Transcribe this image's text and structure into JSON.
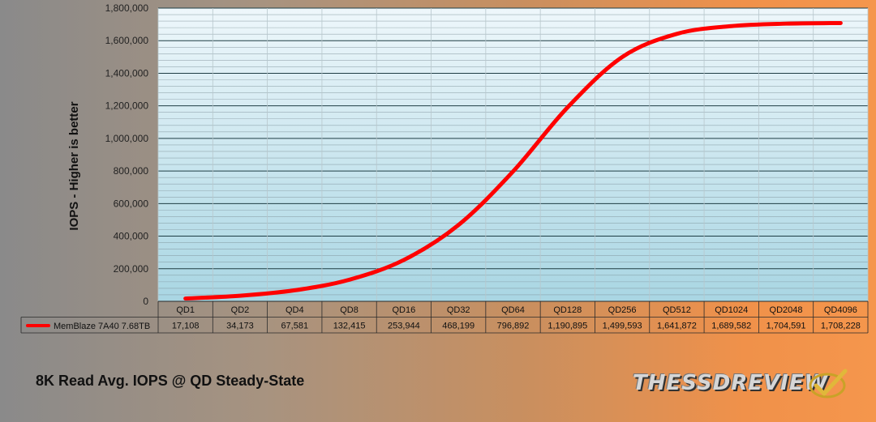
{
  "chart_data": {
    "type": "line",
    "title": "8K Read Avg. IOPS @ QD Steady-State",
    "ylabel": "IOPS - Higher is better",
    "xlabel": "",
    "ylim": [
      0,
      1800000
    ],
    "yticks": [
      0,
      200000,
      400000,
      600000,
      800000,
      1000000,
      1200000,
      1400000,
      1600000,
      1800000
    ],
    "ytick_labels": [
      "0",
      "200,000",
      "400,000",
      "600,000",
      "800,000",
      "1,000,000",
      "1,200,000",
      "1,400,000",
      "1,600,000",
      "1,800,000"
    ],
    "categories": [
      "QD1",
      "QD2",
      "QD4",
      "QD8",
      "QD16",
      "QD32",
      "QD64",
      "QD128",
      "QD256",
      "QD512",
      "QD1024",
      "QD2048",
      "QD4096"
    ],
    "series": [
      {
        "name": "MemBlaze 7A40 7.68TB",
        "color": "#ff0000",
        "values": [
          17108,
          34173,
          67581,
          132415,
          253944,
          468199,
          796892,
          1190895,
          1499593,
          1641872,
          1689582,
          1704591,
          1708228
        ],
        "value_labels": [
          "17,108",
          "34,173",
          "67,581",
          "132,415",
          "253,944",
          "468,199",
          "796,892",
          "1,190,895",
          "1,499,593",
          "1,641,872",
          "1,689,582",
          "1,704,591",
          "1,708,228"
        ]
      }
    ],
    "grid": true,
    "legend": "data-table-left"
  },
  "logo": {
    "text": "THESSDREVIEW"
  }
}
